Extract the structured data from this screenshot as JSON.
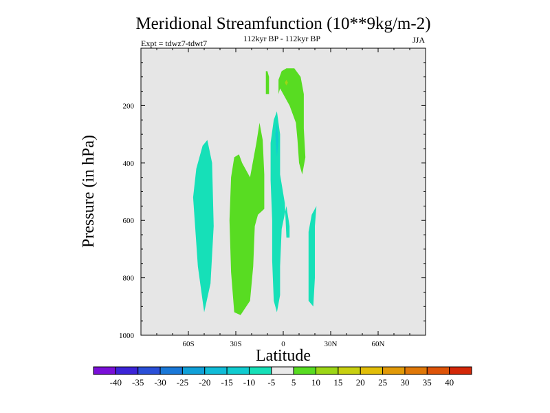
{
  "chart_data": {
    "type": "contour",
    "title": "Meridional Streamfunction (10**9kg/m-2)",
    "subtitle": "112kyr BP - 112kyr BP",
    "left_label": "Expt = tdwz7-tdwt7",
    "right_label": "JJA",
    "xlabel": "Latitude",
    "ylabel": "Pressure (in hPa)",
    "xlim": [
      -90,
      90
    ],
    "ylim": [
      1000,
      0
    ],
    "x_ticks": [
      {
        "value": -60,
        "label": "60S"
      },
      {
        "value": -30,
        "label": "30S"
      },
      {
        "value": 0,
        "label": "0"
      },
      {
        "value": 30,
        "label": "30N"
      },
      {
        "value": 60,
        "label": "60N"
      }
    ],
    "y_ticks": [
      {
        "value": 200,
        "label": "200"
      },
      {
        "value": 400,
        "label": "400"
      },
      {
        "value": 600,
        "label": "600"
      },
      {
        "value": 800,
        "label": "800"
      },
      {
        "value": 1000,
        "label": "1000"
      }
    ],
    "background_color": "#e6e6e6",
    "colorbar": {
      "levels": [
        -40,
        -35,
        -30,
        -25,
        -20,
        -15,
        -10,
        -5,
        5,
        10,
        15,
        20,
        25,
        30,
        35,
        40
      ],
      "labels": [
        "-40",
        "-35",
        "-30",
        "-25",
        "-20",
        "-15",
        "-10",
        "-5",
        "5",
        "10",
        "15",
        "20",
        "25",
        "30",
        "35",
        "40"
      ],
      "colors": [
        "#7a0fd8",
        "#3c24d8",
        "#2a4fd8",
        "#1a78d8",
        "#10a0d8",
        "#10bcd8",
        "#10ccd0",
        "#16e0b8",
        "#eaeaea",
        "#58dc22",
        "#9cd616",
        "#c8d010",
        "#e2be08",
        "#e29a08",
        "#e07808",
        "#de5408",
        "#d42808"
      ]
    },
    "regions": [
      {
        "name": "cell-55s",
        "color": "#16e0b8",
        "points": [
          [
            -57,
            -52
          ],
          [
            -54,
            -76
          ],
          [
            -50,
            -92
          ],
          [
            -46,
            -82
          ],
          [
            -44,
            -62
          ],
          [
            -45,
            -40
          ],
          [
            -48,
            -32
          ],
          [
            -51,
            -34
          ],
          [
            -55,
            -42
          ]
        ]
      },
      {
        "name": "cell-30s",
        "color": "#58dc22",
        "points": [
          [
            -33,
            -45
          ],
          [
            -34,
            -60
          ],
          [
            -33,
            -78
          ],
          [
            -31,
            -92
          ],
          [
            -27,
            -93
          ],
          [
            -21,
            -88
          ],
          [
            -19,
            -76
          ],
          [
            -18,
            -62
          ],
          [
            -16,
            -58
          ],
          [
            -12,
            -56
          ],
          [
            -12,
            -44
          ],
          [
            -13,
            -32
          ],
          [
            -15,
            -26
          ],
          [
            -17,
            -33
          ],
          [
            -21,
            -45
          ],
          [
            -26,
            -40
          ],
          [
            -28,
            -37
          ],
          [
            -31,
            -38
          ]
        ]
      },
      {
        "name": "cell-5s",
        "color": "#16e0b8",
        "points": [
          [
            -8,
            -46
          ],
          [
            -7,
            -60
          ],
          [
            -7,
            -74
          ],
          [
            -6,
            -88
          ],
          [
            -4,
            -92
          ],
          [
            -2,
            -86
          ],
          [
            -2,
            -76
          ],
          [
            -1,
            -63
          ],
          [
            2,
            -55
          ],
          [
            4,
            -62
          ],
          [
            4,
            -66
          ],
          [
            2,
            -66
          ],
          [
            1,
            -54
          ],
          [
            -2,
            -44
          ],
          [
            -2,
            -30
          ],
          [
            -4,
            -22
          ],
          [
            -6,
            -25
          ],
          [
            -8,
            -33
          ]
        ]
      },
      {
        "name": "cell-5s-core",
        "color": "#10ccd0",
        "points": [
          [
            -5,
            -30
          ],
          [
            -4,
            -38
          ],
          [
            -3,
            -32
          ],
          [
            -4,
            -26
          ]
        ]
      },
      {
        "name": "cell-upper-10s",
        "color": "#58dc22",
        "points": [
          [
            -11,
            -16
          ],
          [
            -9,
            -16
          ],
          [
            -9,
            -10
          ],
          [
            -10,
            -8
          ],
          [
            -11,
            -8
          ]
        ]
      },
      {
        "name": "cell-upper-5n",
        "color": "#58dc22",
        "points": [
          [
            -3,
            -16
          ],
          [
            -2,
            -14
          ],
          [
            4,
            -20
          ],
          [
            8,
            -26
          ],
          [
            9,
            -32
          ],
          [
            10,
            -40
          ],
          [
            12,
            -44
          ],
          [
            14,
            -38
          ],
          [
            13,
            -28
          ],
          [
            13,
            -16
          ],
          [
            11,
            -10
          ],
          [
            7,
            -7
          ],
          [
            2,
            -7
          ],
          [
            -1,
            -8
          ],
          [
            -3,
            -11
          ]
        ]
      },
      {
        "name": "cell-upper-5n-core",
        "color": "#9cd616",
        "points": [
          [
            1,
            -12
          ],
          [
            2,
            -11
          ],
          [
            3,
            -12
          ],
          [
            2,
            -13
          ]
        ]
      },
      {
        "name": "cell-18n",
        "color": "#16e0b8",
        "points": [
          [
            16,
            -75
          ],
          [
            16,
            -88
          ],
          [
            19,
            -90
          ],
          [
            20,
            -80
          ],
          [
            20,
            -62
          ],
          [
            21,
            -55
          ],
          [
            18,
            -58
          ],
          [
            16,
            -64
          ]
        ]
      }
    ]
  }
}
